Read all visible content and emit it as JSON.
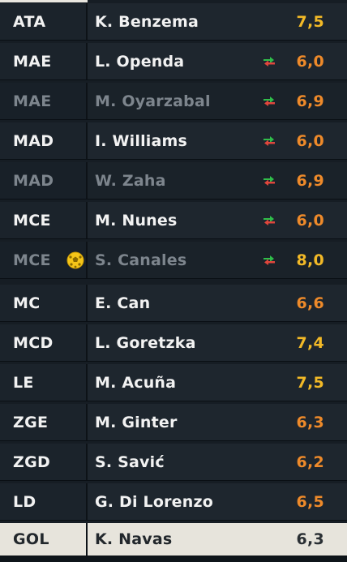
{
  "colors": {
    "rating_gold": "#f2b927",
    "rating_orange": "#ee8a2a",
    "sub_in": "#2fbf4a",
    "sub_out": "#e0463c"
  },
  "players": [
    {
      "pos": "ATA",
      "name": "K. Benzema",
      "rating": "7,5",
      "rating_color": "#f2b927",
      "sub": false,
      "dim": false
    },
    {
      "pos": "MAE",
      "name": "L. Openda",
      "rating": "6,0",
      "rating_color": "#ee8a2a",
      "sub": true,
      "dim": false
    },
    {
      "pos": "MAE",
      "name": "M. Oyarzabal",
      "rating": "6,9",
      "rating_color": "#ee8a2a",
      "sub": true,
      "dim": true
    },
    {
      "pos": "MAD",
      "name": "I. Williams",
      "rating": "6,0",
      "rating_color": "#ee8a2a",
      "sub": true,
      "dim": false
    },
    {
      "pos": "MAD",
      "name": "W. Zaha",
      "rating": "6,9",
      "rating_color": "#ee8a2a",
      "sub": true,
      "dim": true
    },
    {
      "pos": "MCE",
      "name": "M. Nunes",
      "rating": "6,0",
      "rating_color": "#ee8a2a",
      "sub": true,
      "dim": false
    },
    {
      "pos": "MCE",
      "name": "S. Canales",
      "rating": "8,0",
      "rating_color": "#f2b927",
      "sub": true,
      "dim": true,
      "goal": true
    },
    {
      "pos": "MC",
      "name": "E. Can",
      "rating": "6,6",
      "rating_color": "#ee8a2a",
      "sub": false,
      "dim": false
    },
    {
      "pos": "MCD",
      "name": "L. Goretzka",
      "rating": "7,4",
      "rating_color": "#f2b927",
      "sub": false,
      "dim": false
    },
    {
      "pos": "LE",
      "name": "M. Acuña",
      "rating": "7,5",
      "rating_color": "#f2b927",
      "sub": false,
      "dim": false
    },
    {
      "pos": "ZGE",
      "name": "M. Ginter",
      "rating": "6,3",
      "rating_color": "#ee8a2a",
      "sub": false,
      "dim": false
    },
    {
      "pos": "ZGD",
      "name": "S. Savić",
      "rating": "6,2",
      "rating_color": "#ee8a2a",
      "sub": false,
      "dim": false
    },
    {
      "pos": "LD",
      "name": "G. Di Lorenzo",
      "rating": "6,5",
      "rating_color": "#ee8a2a",
      "sub": false,
      "dim": false
    },
    {
      "pos": "GOL",
      "name": "K. Navas",
      "rating": "6,3",
      "rating_color": "#2a2f34",
      "sub": false,
      "dim": false,
      "highlight": true
    }
  ]
}
